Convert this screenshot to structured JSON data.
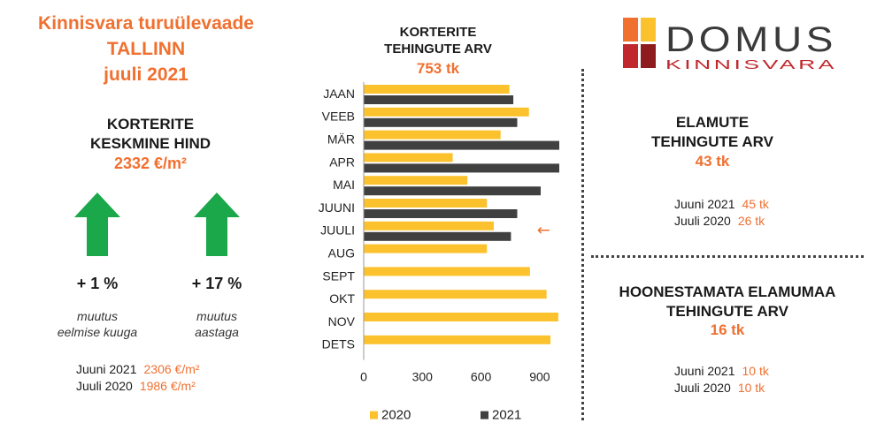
{
  "header": {
    "line1": "Kinnisvara turuülevaade",
    "line2": "TALLINN",
    "line3": "juuli 2021"
  },
  "apartment_price": {
    "title_line1": "KORTERITE",
    "title_line2": "KESKMINE HIND",
    "value": "2332 €/m²",
    "month_change": "+ 1 %",
    "month_caption_line1": "muutus",
    "month_caption_line2": "eelmise kuuga",
    "year_change": "+ 17 %",
    "year_caption_line1": "muutus",
    "year_caption_line2": "aastaga",
    "comparisons": [
      {
        "label": "Juuni 2021",
        "value": "2306 €/m²"
      },
      {
        "label": "Juuli 2020",
        "value": "1986 €/m²"
      }
    ]
  },
  "apartment_transactions": {
    "title_line1": "KORTERITE",
    "title_line2": "TEHINGUTE ARV",
    "value": "753 tk"
  },
  "logo": {
    "name": "DOMUS",
    "sub": "KINNISVARA"
  },
  "house_transactions": {
    "title_line1": "ELAMUTE",
    "title_line2": "TEHINGUTE ARV",
    "value": "43 tk",
    "comparisons": [
      {
        "label": "Juuni 2021",
        "value": "45 tk"
      },
      {
        "label": "Juuli 2020",
        "value": "26 tk"
      }
    ]
  },
  "land_transactions": {
    "title_line1": "HOONESTAMATA ELAMUMAA",
    "title_line2": "TEHINGUTE ARV",
    "value": "16 tk",
    "comparisons": [
      {
        "label": "Juuni 2021",
        "value": "10 tk"
      },
      {
        "label": "Juuli 2020",
        "value": "10 tk"
      }
    ]
  },
  "chart_data": {
    "type": "bar",
    "orientation": "horizontal",
    "categories": [
      "JAAN",
      "VEEB",
      "MÄR",
      "APR",
      "MAI",
      "JUUNI",
      "JUULI",
      "AUG",
      "SEPT",
      "OKT",
      "NOV",
      "DETS"
    ],
    "series": [
      {
        "name": "2020",
        "color": "#fcc22d",
        "values": [
          745,
          845,
          700,
          455,
          530,
          630,
          665,
          630,
          850,
          935,
          995,
          955
        ]
      },
      {
        "name": "2021",
        "color": "#404040",
        "values": [
          765,
          785,
          1000,
          1000,
          905,
          785,
          753,
          null,
          null,
          null,
          null,
          null
        ]
      }
    ],
    "xlim": [
      0,
      1000
    ],
    "xticks": [
      0,
      300,
      600,
      900
    ],
    "grid": false,
    "legend_position": "bottom",
    "annotation": {
      "text": "←",
      "category": "JUULI",
      "color": "#f07030"
    }
  }
}
